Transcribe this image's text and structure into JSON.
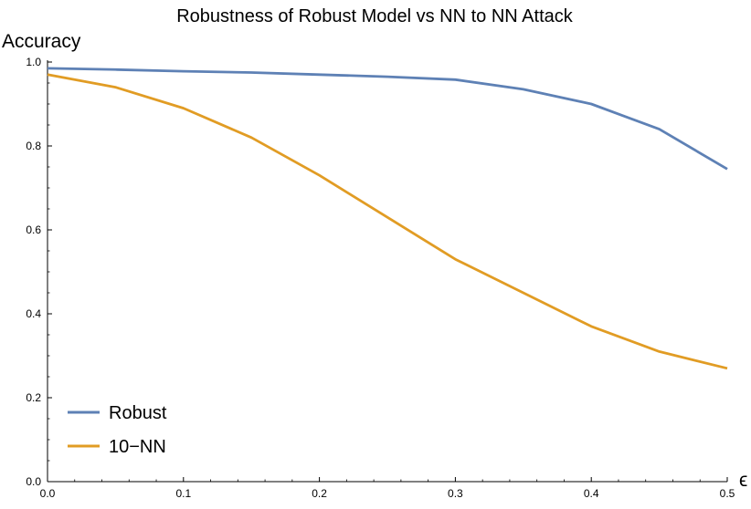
{
  "chart_data": {
    "type": "line",
    "title": "Robustness of Robust Model vs NN to NN Attack",
    "xlabel": "ϵ",
    "ylabel": "Accuracy",
    "xlim": [
      0,
      0.5
    ],
    "ylim": [
      0,
      1.0
    ],
    "x_ticks": [
      "0.0",
      "0.1",
      "0.2",
      "0.3",
      "0.4",
      "0.5"
    ],
    "y_ticks": [
      "0.0",
      "0.2",
      "0.4",
      "0.6",
      "0.8",
      "1.0"
    ],
    "grid": false,
    "legend_position": "bottom-left",
    "x": [
      0.0,
      0.05,
      0.1,
      0.15,
      0.2,
      0.25,
      0.3,
      0.35,
      0.4,
      0.45,
      0.5
    ],
    "series": [
      {
        "name": "Robust",
        "color": "#5e81b5",
        "values": [
          0.985,
          0.982,
          0.978,
          0.975,
          0.97,
          0.965,
          0.958,
          0.935,
          0.9,
          0.84,
          0.745
        ]
      },
      {
        "name": "10−NN",
        "color": "#e19c24",
        "values": [
          0.97,
          0.94,
          0.89,
          0.82,
          0.73,
          0.63,
          0.53,
          0.45,
          0.37,
          0.31,
          0.27
        ]
      }
    ]
  }
}
